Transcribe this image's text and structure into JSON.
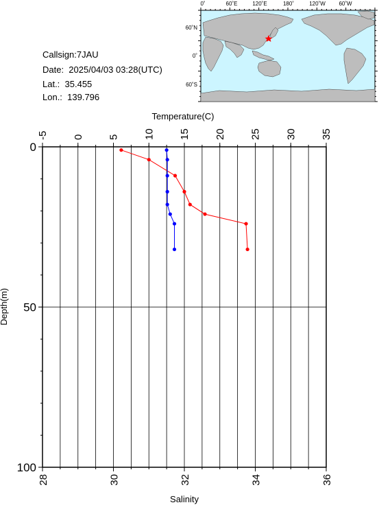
{
  "info": {
    "callsign": "Callsign:7JAU",
    "date": "Date:  2025/04/03 03:28(UTC)",
    "lat": "Lat.:  35.455",
    "lon": "Lon.:  139.796"
  },
  "map": {
    "top_ticks": [
      "0˚",
      "60˚E",
      "120˚E",
      "180˚",
      "120˚W",
      "60˚W"
    ],
    "left_ticks": [
      "60˚N",
      "0˚",
      "60˚S"
    ],
    "ocean_color": "#ccf5ff",
    "land_color": "#bdbdbd",
    "station_marker": "red-star-icon",
    "station_color": "#ff0000"
  },
  "chart_data": {
    "type": "line",
    "ylabel": "Depth(m)",
    "ylim": [
      100,
      0
    ],
    "yticks": [
      "0",
      "50",
      "100"
    ],
    "temperature_axis": {
      "label": "Temperature(C)",
      "range": [
        -5,
        35
      ],
      "ticks": [
        "-5",
        "0",
        "5",
        "10",
        "15",
        "20",
        "25",
        "30",
        "35"
      ]
    },
    "salinity_axis": {
      "label": "Salinity",
      "range": [
        28,
        36
      ],
      "ticks": [
        "28",
        "30",
        "32",
        "34",
        "36"
      ]
    },
    "series": [
      {
        "axis": "temperature",
        "color": "#ff0000",
        "depth": [
          1,
          4,
          9,
          14,
          18,
          21,
          24,
          32
        ],
        "values": [
          6.1,
          10.0,
          13.7,
          15.0,
          15.8,
          17.9,
          23.7,
          23.9
        ]
      },
      {
        "axis": "salinity",
        "color": "#0000ff",
        "depth": [
          1,
          4,
          9,
          14,
          18,
          21,
          24,
          32
        ],
        "values": [
          31.5,
          31.52,
          31.52,
          31.52,
          31.52,
          31.6,
          31.72,
          31.72
        ]
      }
    ],
    "grid": {
      "vertical_count": 16,
      "horizontal_at_depth": [
        50
      ]
    }
  }
}
